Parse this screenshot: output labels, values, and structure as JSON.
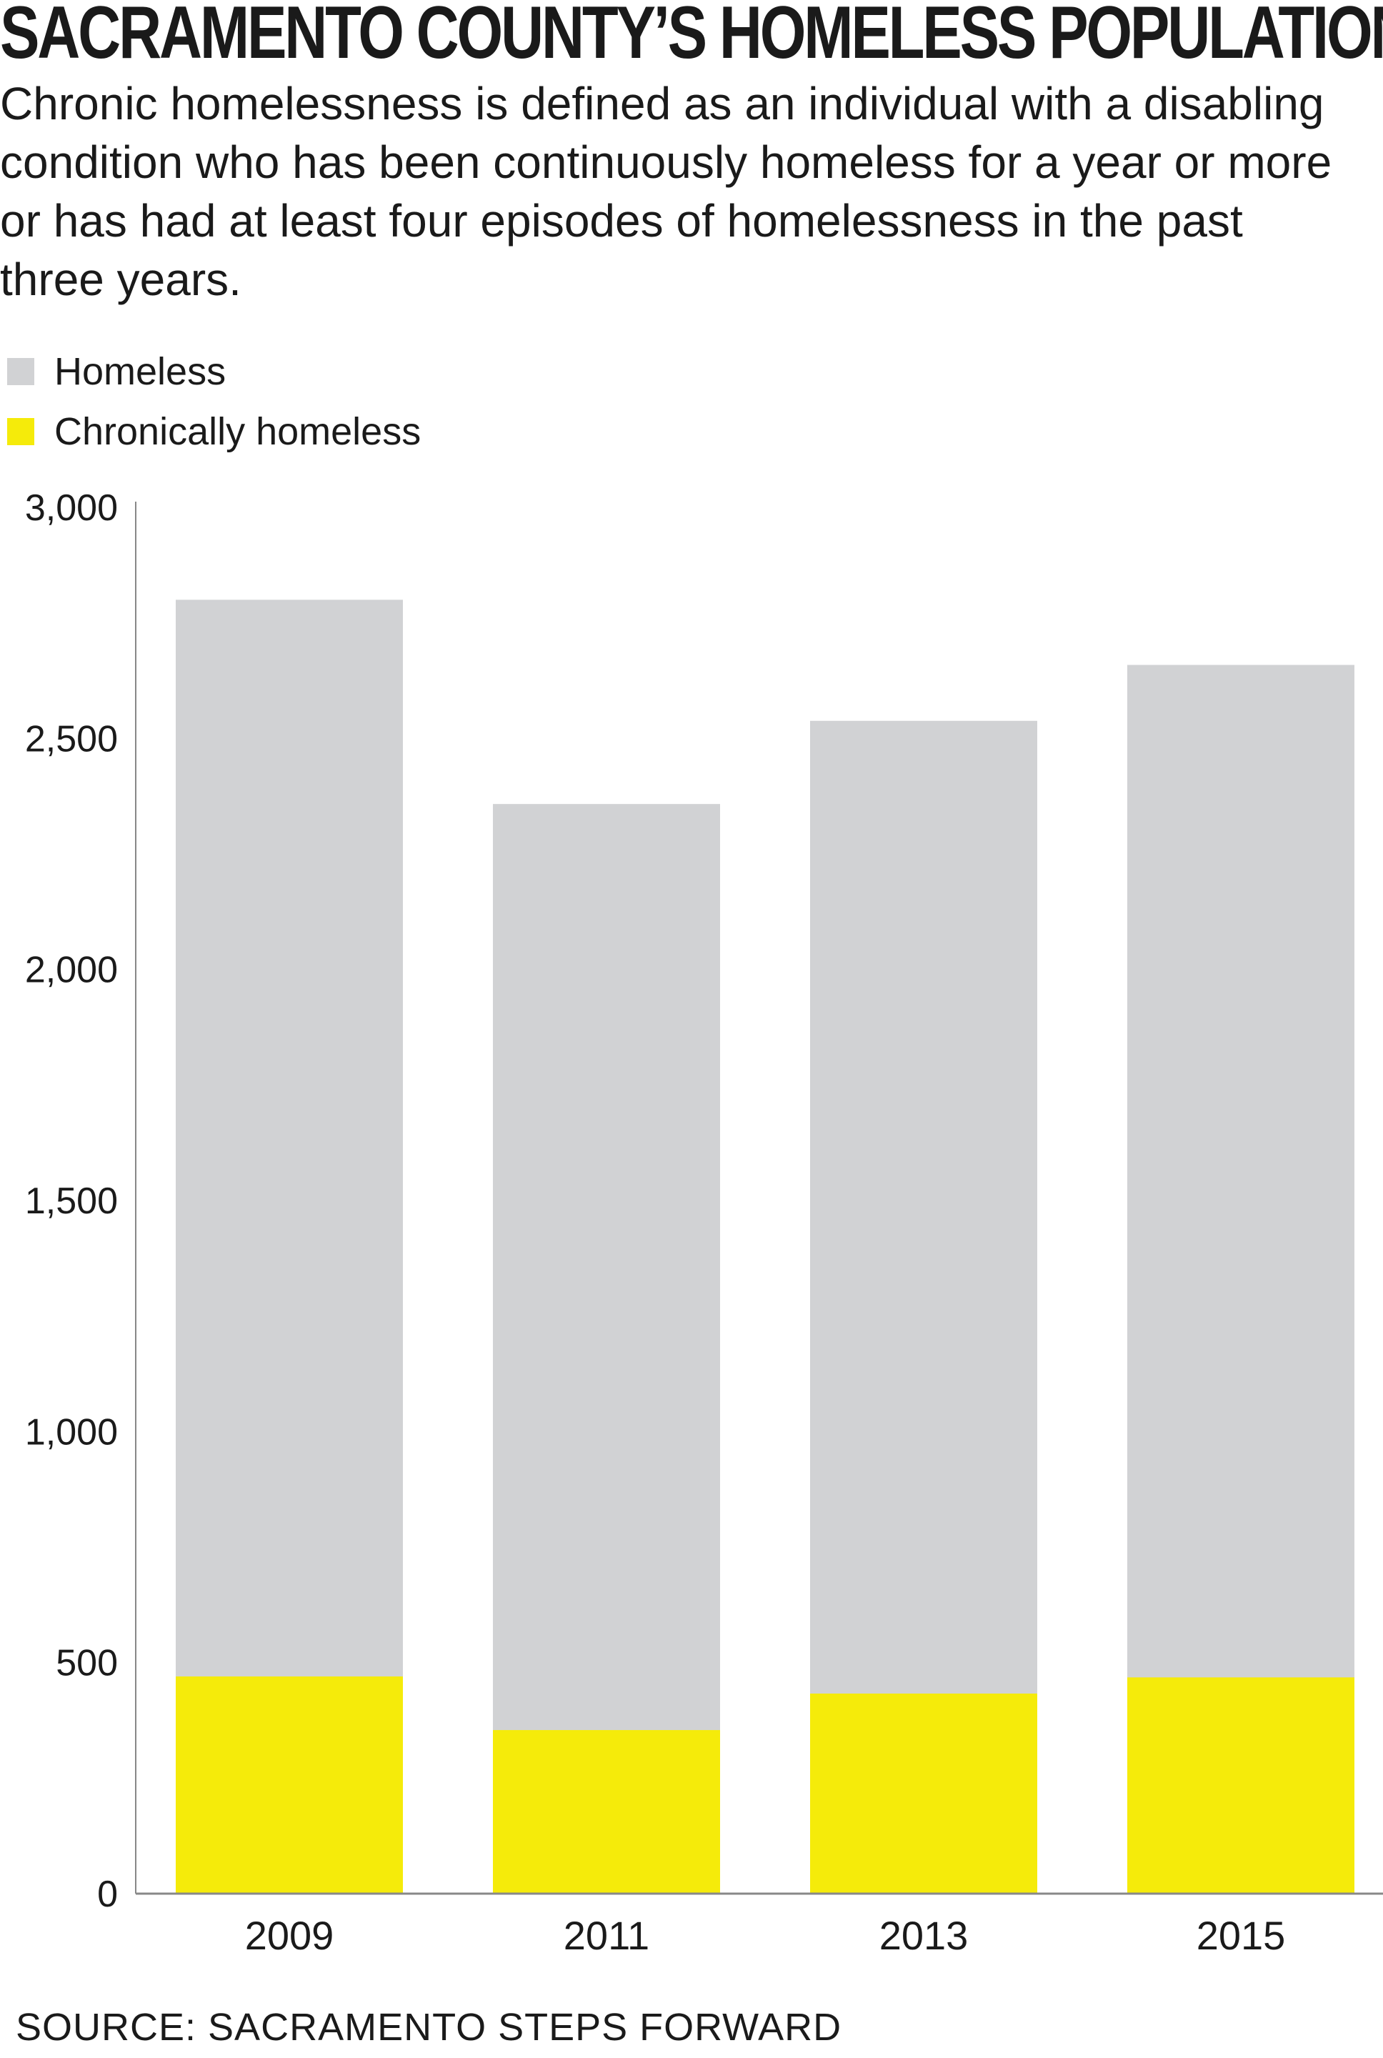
{
  "title": "SACRAMENTO COUNTY’S HOMELESS POPULATION",
  "subtitle": "Chronic homelessness is defined as an individual with a disabling condition who has been continuously homeless for a year or more or has had at least four episodes of homelessness in the past three years.",
  "source": "SOURCE: SACRAMENTO STEPS FORWARD",
  "colors": {
    "homeless": "#d1d2d4",
    "chronic": "#f5eb0a",
    "axis": "#888888",
    "text": "#1a1a1a"
  },
  "chart_data": {
    "type": "bar",
    "stacking": "overlay",
    "title": "SACRAMENTO COUNTY’S HOMELESS POPULATION",
    "xlabel": "",
    "ylabel": "",
    "ylim": [
      0,
      3000
    ],
    "yticks": [
      0,
      500,
      1000,
      1500,
      2000,
      2500,
      3000
    ],
    "ytick_labels": [
      "0",
      "500",
      "1,000",
      "1,500",
      "2,000",
      "2,500",
      "3,000"
    ],
    "categories": [
      "2009",
      "2011",
      "2013",
      "2015"
    ],
    "series": [
      {
        "name": "Homeless",
        "color": "#d1d2d4",
        "values": [
          2800,
          2358,
          2538,
          2659
        ]
      },
      {
        "name": "Chronically homeless",
        "color": "#f5eb0a",
        "values": [
          470,
          354,
          433,
          468
        ]
      }
    ],
    "legend_position": "top-left",
    "grid": false
  }
}
